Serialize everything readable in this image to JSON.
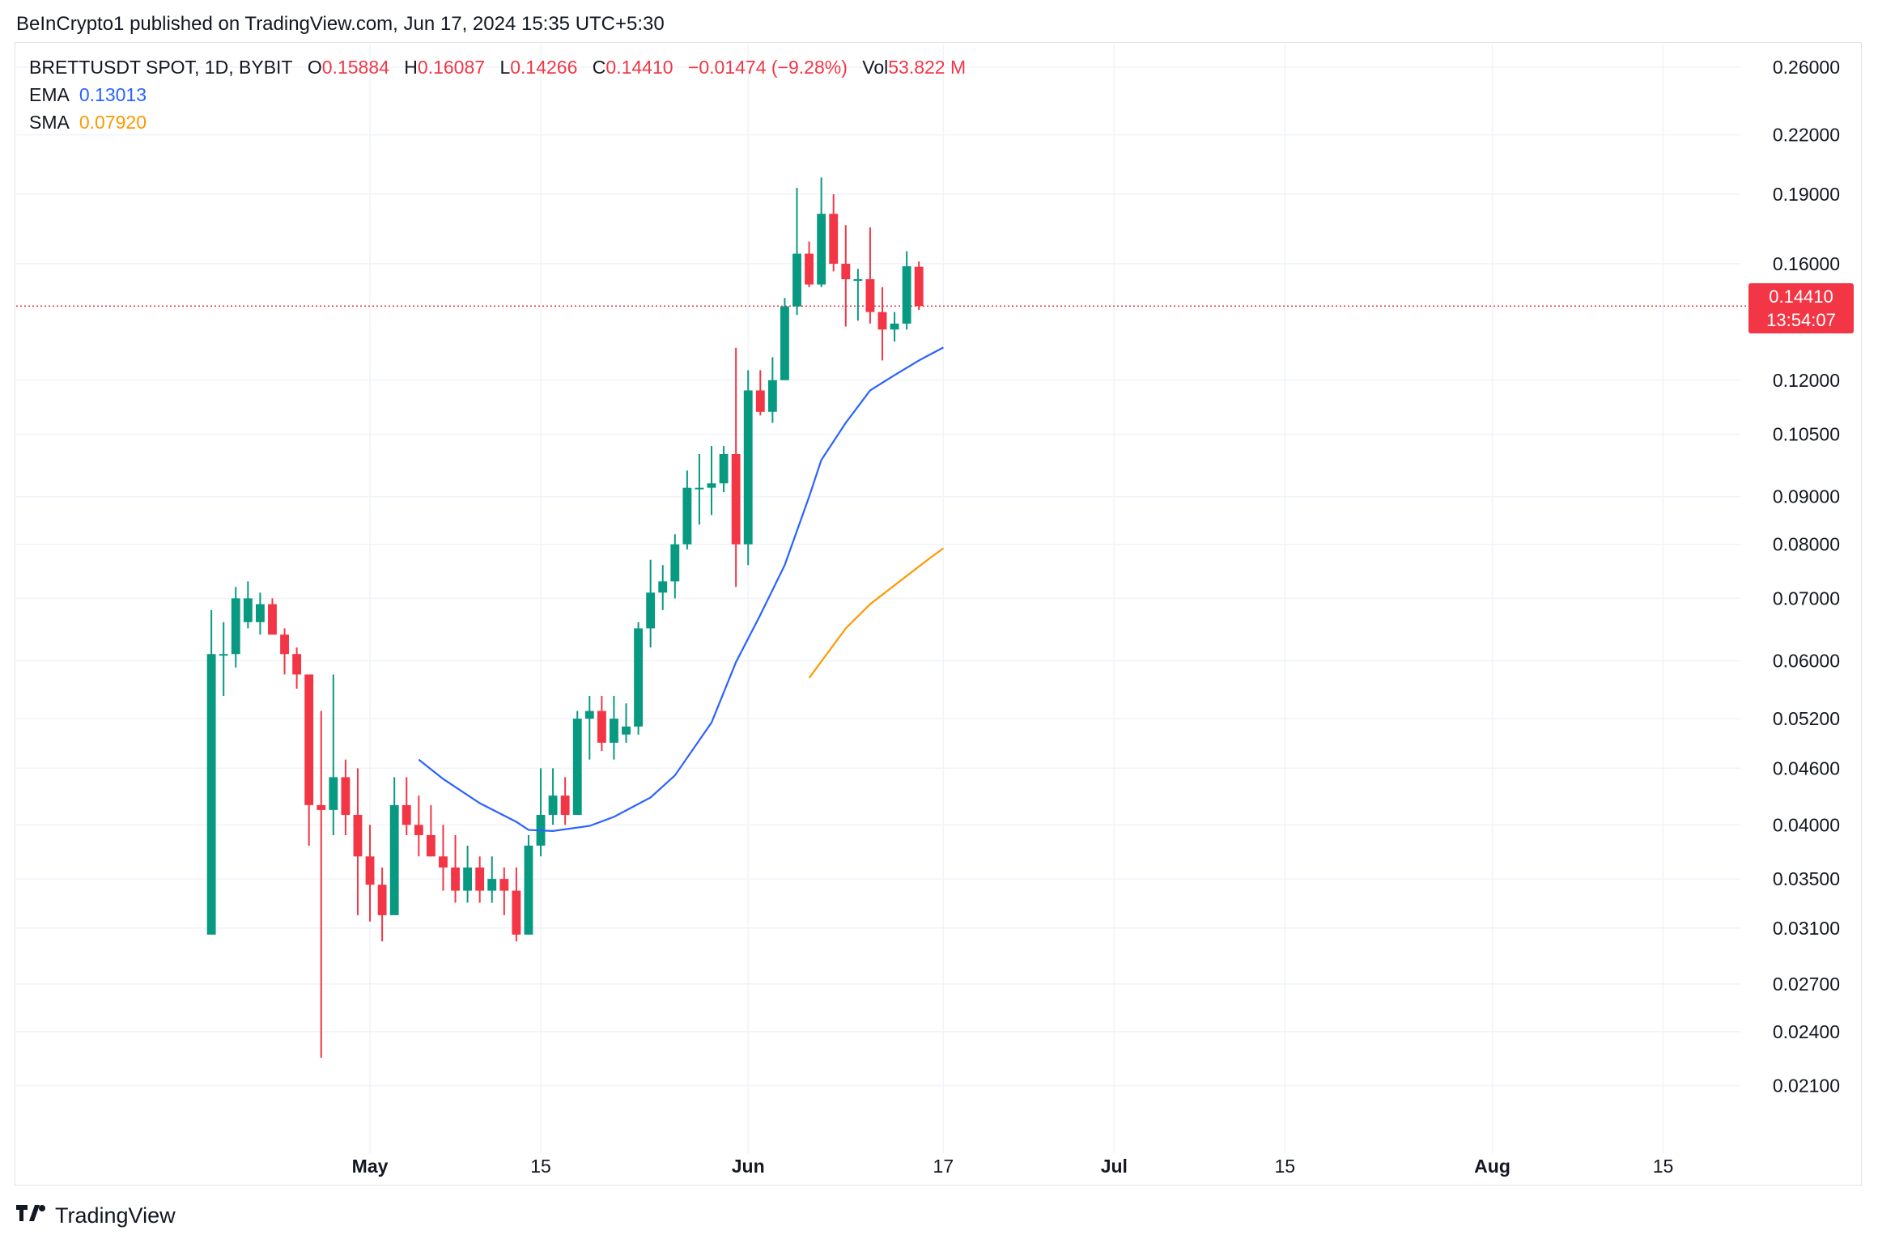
{
  "header": {
    "published": "BeInCrypto1 published on TradingView.com, Jun 17, 2024 15:35 UTC+5:30"
  },
  "legend": {
    "symbol": "BRETTUSDT SPOT, 1D, BYBIT",
    "open_label": "O",
    "open": "0.15884",
    "high_label": "H",
    "high": "0.16087",
    "low_label": "L",
    "low": "0.14266",
    "close_label": "C",
    "close": "0.14410",
    "change": "−0.01474 (−9.28%)",
    "vol_label": "Vol",
    "vol": "53.822 M",
    "ema_label": "EMA",
    "ema": "0.13013",
    "sma_label": "SMA",
    "sma": "0.07920"
  },
  "price_tag": {
    "price": "0.14410",
    "countdown": "13:54:07"
  },
  "footer": {
    "brand": "TradingView",
    "logo_icon": "tradingview-logo-icon"
  },
  "colors": {
    "up": "#089981",
    "down": "#f23645",
    "ema": "#2962ff",
    "sma": "#ff9800",
    "grid": "#f0f3fa"
  },
  "chart_data": {
    "type": "candlestick",
    "y_scale": "log",
    "ylim": [
      0.0185,
      0.275
    ],
    "xlim": [
      "2024-04-02",
      "2024-08-22"
    ],
    "y_ticks": [
      "0.26000",
      "0.22000",
      "0.19000",
      "0.16000",
      "0.12000",
      "0.10500",
      "0.09000",
      "0.08000",
      "0.07000",
      "0.06000",
      "0.05200",
      "0.04600",
      "0.04000",
      "0.03500",
      "0.03100",
      "0.02700",
      "0.02400",
      "0.02100"
    ],
    "x_ticks": [
      {
        "date": "2024-05-01",
        "label": "May",
        "bold": true
      },
      {
        "date": "2024-05-15",
        "label": "15",
        "bold": false
      },
      {
        "date": "2024-06-01",
        "label": "Jun",
        "bold": true
      },
      {
        "date": "2024-06-17",
        "label": "17",
        "bold": false
      },
      {
        "date": "2024-07-01",
        "label": "Jul",
        "bold": true
      },
      {
        "date": "2024-07-15",
        "label": "15",
        "bold": false
      },
      {
        "date": "2024-08-01",
        "label": "Aug",
        "bold": true
      },
      {
        "date": "2024-08-15",
        "label": "15",
        "bold": false
      }
    ],
    "candles_start": "2024-04-18",
    "candles": [
      [
        0.0305,
        0.068,
        0.0305,
        0.061
      ],
      [
        0.061,
        0.066,
        0.055,
        0.061
      ],
      [
        0.061,
        0.072,
        0.059,
        0.07
      ],
      [
        0.066,
        0.073,
        0.065,
        0.07
      ],
      [
        0.066,
        0.071,
        0.064,
        0.069
      ],
      [
        0.069,
        0.07,
        0.064,
        0.064
      ],
      [
        0.064,
        0.065,
        0.058,
        0.061
      ],
      [
        0.061,
        0.062,
        0.056,
        0.058
      ],
      [
        0.058,
        0.058,
        0.038,
        0.042
      ],
      [
        0.042,
        0.053,
        0.0225,
        0.0415
      ],
      [
        0.0415,
        0.058,
        0.039,
        0.045
      ],
      [
        0.045,
        0.047,
        0.039,
        0.041
      ],
      [
        0.041,
        0.046,
        0.032,
        0.037
      ],
      [
        0.037,
        0.04,
        0.0315,
        0.0345
      ],
      [
        0.0345,
        0.036,
        0.03,
        0.032
      ],
      [
        0.032,
        0.045,
        0.032,
        0.042
      ],
      [
        0.042,
        0.045,
        0.039,
        0.04
      ],
      [
        0.04,
        0.043,
        0.037,
        0.039
      ],
      [
        0.039,
        0.042,
        0.037,
        0.037
      ],
      [
        0.037,
        0.04,
        0.034,
        0.036
      ],
      [
        0.036,
        0.039,
        0.033,
        0.034
      ],
      [
        0.034,
        0.038,
        0.033,
        0.036
      ],
      [
        0.036,
        0.037,
        0.033,
        0.034
      ],
      [
        0.034,
        0.037,
        0.033,
        0.035
      ],
      [
        0.035,
        0.036,
        0.032,
        0.034
      ],
      [
        0.034,
        0.036,
        0.03,
        0.0305
      ],
      [
        0.0305,
        0.039,
        0.0305,
        0.038
      ],
      [
        0.038,
        0.046,
        0.037,
        0.041
      ],
      [
        0.041,
        0.046,
        0.04,
        0.043
      ],
      [
        0.043,
        0.045,
        0.04,
        0.041
      ],
      [
        0.041,
        0.053,
        0.041,
        0.052
      ],
      [
        0.052,
        0.055,
        0.047,
        0.053
      ],
      [
        0.053,
        0.055,
        0.048,
        0.049
      ],
      [
        0.049,
        0.055,
        0.047,
        0.052
      ],
      [
        0.05,
        0.054,
        0.049,
        0.051
      ],
      [
        0.051,
        0.066,
        0.05,
        0.065
      ],
      [
        0.065,
        0.077,
        0.062,
        0.071
      ],
      [
        0.071,
        0.076,
        0.068,
        0.073
      ],
      [
        0.073,
        0.082,
        0.07,
        0.08
      ],
      [
        0.08,
        0.096,
        0.079,
        0.092
      ],
      [
        0.092,
        0.1,
        0.084,
        0.092
      ],
      [
        0.092,
        0.102,
        0.086,
        0.093
      ],
      [
        0.093,
        0.102,
        0.091,
        0.1
      ],
      [
        0.1,
        0.13,
        0.072,
        0.08
      ],
      [
        0.08,
        0.123,
        0.076,
        0.117
      ],
      [
        0.117,
        0.123,
        0.11,
        0.111
      ],
      [
        0.111,
        0.127,
        0.108,
        0.12
      ],
      [
        0.12,
        0.147,
        0.12,
        0.144
      ],
      [
        0.144,
        0.193,
        0.141,
        0.164
      ],
      [
        0.164,
        0.169,
        0.151,
        0.152
      ],
      [
        0.152,
        0.198,
        0.151,
        0.181
      ],
      [
        0.181,
        0.19,
        0.157,
        0.16
      ],
      [
        0.16,
        0.176,
        0.137,
        0.154
      ],
      [
        0.154,
        0.158,
        0.139,
        0.154
      ],
      [
        0.154,
        0.175,
        0.138,
        0.142
      ],
      [
        0.142,
        0.151,
        0.126,
        0.136
      ],
      [
        0.136,
        0.142,
        0.132,
        0.138
      ],
      [
        0.138,
        0.165,
        0.136,
        0.159
      ],
      [
        0.1588,
        0.1609,
        0.1427,
        0.1441
      ]
    ],
    "ema": [
      [
        "2024-05-05",
        0.047
      ],
      [
        "2024-05-07",
        0.0448
      ],
      [
        "2024-05-10",
        0.0422
      ],
      [
        "2024-05-13",
        0.0403
      ],
      [
        "2024-05-14",
        0.0395
      ],
      [
        "2024-05-16",
        0.0394
      ],
      [
        "2024-05-19",
        0.0399
      ],
      [
        "2024-05-21",
        0.0408
      ],
      [
        "2024-05-24",
        0.0428
      ],
      [
        "2024-05-26",
        0.0452
      ],
      [
        "2024-05-29",
        0.0515
      ],
      [
        "2024-05-31",
        0.0598
      ],
      [
        "2024-06-02",
        0.0672
      ],
      [
        "2024-06-04",
        0.076
      ],
      [
        "2024-06-06",
        0.09
      ],
      [
        "2024-06-07",
        0.0985
      ],
      [
        "2024-06-09",
        0.108
      ],
      [
        "2024-06-11",
        0.117
      ],
      [
        "2024-06-13",
        0.1215
      ],
      [
        "2024-06-15",
        0.126
      ],
      [
        "2024-06-17",
        0.1301
      ]
    ],
    "sma": [
      [
        "2024-06-06",
        0.0575
      ],
      [
        "2024-06-09",
        0.065
      ],
      [
        "2024-06-11",
        0.069
      ],
      [
        "2024-06-14",
        0.074
      ],
      [
        "2024-06-16",
        0.0775
      ],
      [
        "2024-06-17",
        0.0792
      ]
    ]
  }
}
